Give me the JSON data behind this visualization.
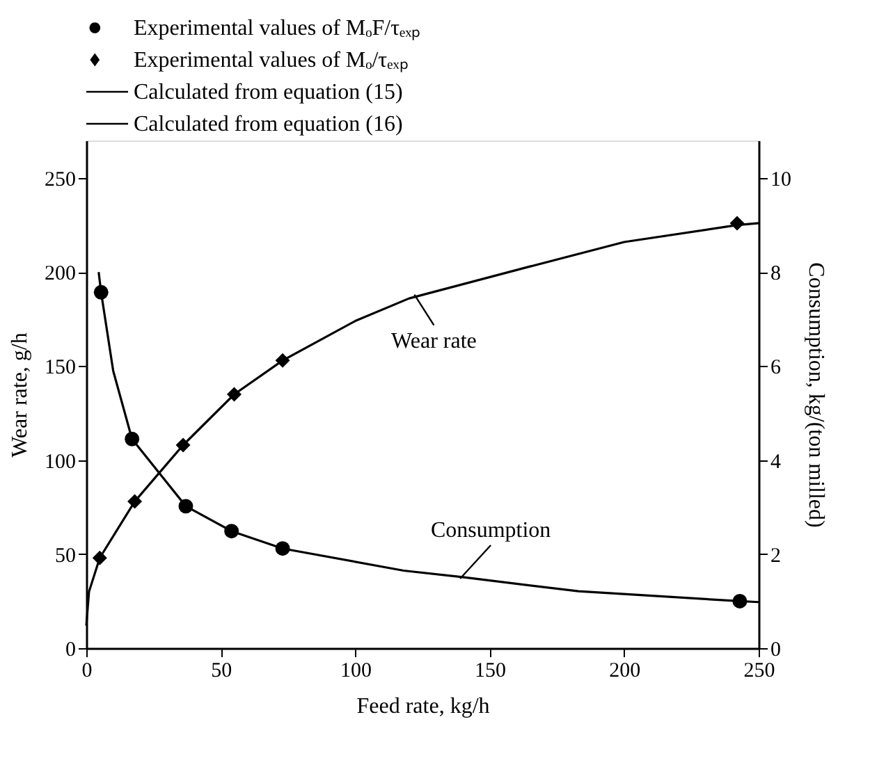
{
  "chart_data": {
    "type": "line",
    "xlabel": "Feed rate, kg/h",
    "ylabel": "Wear rate, g/h",
    "y2label": "Consumption, kg/(ton milled)",
    "xlim": [
      0,
      250
    ],
    "xticks": [
      0,
      50,
      100,
      150,
      200,
      250
    ],
    "ylim": [
      0,
      270
    ],
    "yticks": [
      0,
      50,
      100,
      150,
      200,
      250
    ],
    "y2lim": [
      0,
      10.8
    ],
    "y2ticks": [
      0,
      2,
      4,
      6,
      8,
      10
    ],
    "grid": false,
    "legend": "top",
    "series": [
      {
        "name": "Experimental values of MₒF/τₑₓₚ",
        "type": "scatter",
        "marker": "circle",
        "axis": "y2",
        "color": "#000000",
        "x": [
          5.5,
          17,
          37,
          54,
          73,
          243
        ],
        "values": [
          7.57,
          4.45,
          3.02,
          2.49,
          2.12,
          1.0
        ]
      },
      {
        "name": "Experimental values of Mₒ/τₑₓₚ",
        "type": "scatter",
        "marker": "diamond",
        "axis": "y",
        "color": "#000000",
        "x": [
          5,
          18,
          36,
          55,
          73,
          242
        ],
        "values": [
          48,
          78,
          108,
          135,
          153,
          226
        ]
      },
      {
        "name": "Calculated from equation (15)",
        "axis": "y2",
        "color": "#000000",
        "x": [
          4.6,
          5.5,
          10,
          17,
          37,
          54,
          73,
          118,
          140,
          183,
          243,
          250
        ],
        "values": [
          8.0,
          7.57,
          5.9,
          4.45,
          3.02,
          2.49,
          2.12,
          1.65,
          1.51,
          1.21,
          1.0,
          0.98
        ]
      },
      {
        "name": "Calculated from equation (16)",
        "axis": "y",
        "color": "#000000",
        "x": [
          0,
          1,
          5,
          18,
          36,
          55,
          73,
          100,
          120,
          165,
          200,
          242,
          250
        ],
        "values": [
          12,
          30,
          48,
          78,
          108,
          135,
          153,
          174,
          186,
          203,
          216,
          225,
          226
        ]
      }
    ],
    "annotations": [
      {
        "text": "Wear rate",
        "x": 122,
        "y": 188
      },
      {
        "text": "Consumption",
        "x": 139,
        "y": 37
      }
    ]
  }
}
